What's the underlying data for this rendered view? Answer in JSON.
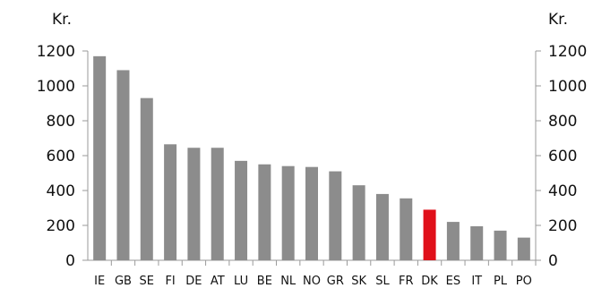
{
  "chart_data": {
    "type": "bar",
    "title": "",
    "unit_left": "Kr.",
    "unit_right": "Kr.",
    "xlabel": "",
    "ylabel": "",
    "ylim": [
      0,
      1200
    ],
    "yticks": [
      "0",
      "200",
      "400",
      "600",
      "800",
      "1000",
      "1200"
    ],
    "grid": false,
    "categories": [
      "IE",
      "GB",
      "SE",
      "FI",
      "DE",
      "AT",
      "LU",
      "BE",
      "NL",
      "NO",
      "GR",
      "SK",
      "SL",
      "FR",
      "DK",
      "ES",
      "IT",
      "PL",
      "PO"
    ],
    "values": [
      1170,
      1090,
      930,
      665,
      645,
      645,
      570,
      550,
      540,
      535,
      510,
      430,
      380,
      355,
      290,
      220,
      195,
      170,
      130
    ],
    "highlight": "DK",
    "colors": {
      "bar": "#8c8c8c",
      "highlight": "#e0101a",
      "axis": "#9a9a9a",
      "text": "#111111"
    }
  }
}
